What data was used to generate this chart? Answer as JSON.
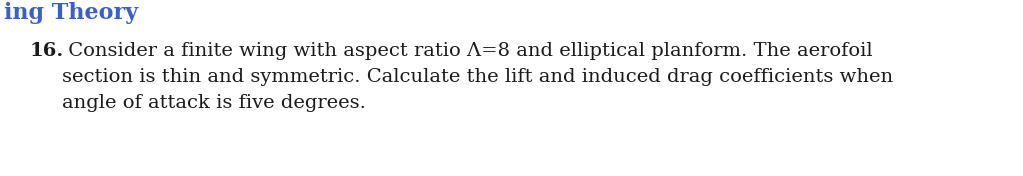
{
  "header_text": "ing Theory",
  "header_color": "#3a5fcd",
  "header_fontsize": 16,
  "number": "16.",
  "number_fontsize": 14,
  "line1": " Consider a finite wing with aspect ratio Λ=8 and elliptical planform. The aerofoil",
  "line2": "section is thin and symmetric. Calculate the lift and induced drag coefficients when",
  "line3": "angle of attack is five degrees.",
  "body_fontsize": 14,
  "background_color": "#ffffff",
  "text_color": "#1a1a1a",
  "fig_width": 10.23,
  "fig_height": 1.76,
  "dpi": 100
}
